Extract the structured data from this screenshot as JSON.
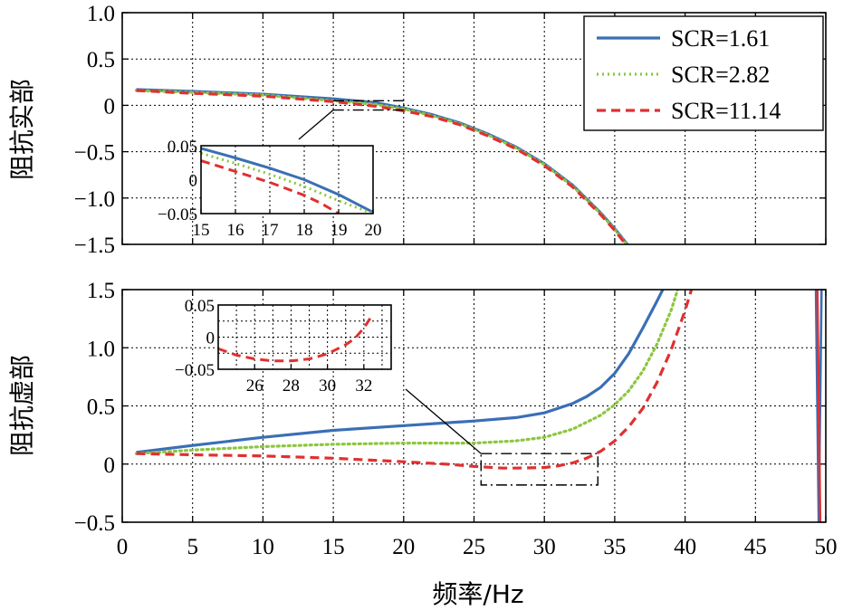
{
  "chart_data": [
    {
      "type": "line",
      "id": "top",
      "ylabel": "阻抗实部",
      "xlim": [
        0,
        50
      ],
      "ylim": [
        -1.5,
        1.0
      ],
      "xticks": [],
      "yticks": [
        {
          "v": 1.0,
          "label": "1.0"
        },
        {
          "v": 0.5,
          "label": "0.5"
        },
        {
          "v": 0,
          "label": "0"
        },
        {
          "v": -0.5,
          "label": "−0.5"
        },
        {
          "v": -1.0,
          "label": "−1.0"
        },
        {
          "v": -1.5,
          "label": "−1.5"
        }
      ],
      "grid": true,
      "legend_position": "top-right",
      "series": [
        {
          "name": "SCR=1.61",
          "color": "#3a6fb5",
          "dash": "solid",
          "x": [
            1,
            5,
            10,
            15,
            18,
            20,
            22,
            24,
            26,
            28,
            30,
            32,
            34,
            35,
            36
          ],
          "y": [
            0.17,
            0.15,
            0.12,
            0.07,
            0.03,
            -0.03,
            -0.1,
            -0.19,
            -0.31,
            -0.45,
            -0.63,
            -0.86,
            -1.16,
            -1.33,
            -1.52
          ]
        },
        {
          "name": "SCR=2.82",
          "color": "#8cc63f",
          "dash": "dotted",
          "x": [
            1,
            5,
            10,
            15,
            18,
            20,
            22,
            24,
            26,
            28,
            30,
            32,
            34,
            35,
            36
          ],
          "y": [
            0.16,
            0.14,
            0.11,
            0.05,
            0.01,
            -0.04,
            -0.11,
            -0.2,
            -0.32,
            -0.46,
            -0.64,
            -0.87,
            -1.17,
            -1.34,
            -1.53
          ]
        },
        {
          "name": "SCR=11.14",
          "color": "#e03030",
          "dash": "dashed",
          "x": [
            1,
            5,
            10,
            15,
            18,
            20,
            22,
            24,
            26,
            28,
            30,
            32,
            34,
            35,
            36
          ],
          "y": [
            0.16,
            0.13,
            0.1,
            0.04,
            -0.01,
            -0.06,
            -0.12,
            -0.21,
            -0.33,
            -0.47,
            -0.65,
            -0.88,
            -1.18,
            -1.35,
            -1.54
          ]
        }
      ],
      "zoom_box": {
        "x": [
          15,
          20
        ],
        "y": [
          -0.05,
          0.05
        ]
      },
      "inset": {
        "xlim": [
          15,
          20
        ],
        "ylim": [
          -0.05,
          0.05
        ],
        "xticks": [
          {
            "v": 15,
            "label": "15"
          },
          {
            "v": 16,
            "label": "16"
          },
          {
            "v": 17,
            "label": "17"
          },
          {
            "v": 18,
            "label": "18"
          },
          {
            "v": 19,
            "label": "19"
          },
          {
            "v": 20,
            "label": "20"
          }
        ],
        "yticks": [
          {
            "v": 0.05,
            "label": "0.05"
          },
          {
            "v": 0,
            "label": "0"
          },
          {
            "v": -0.05,
            "label": "−0.05"
          }
        ],
        "series": [
          {
            "name": "SCR=1.61",
            "x": [
              15,
              16,
              17,
              18,
              19,
              20
            ],
            "y": [
              0.046,
              0.032,
              0.017,
              0.0,
              -0.022,
              -0.048
            ]
          },
          {
            "name": "SCR=2.82",
            "x": [
              15,
              16,
              17,
              18,
              19,
              20
            ],
            "y": [
              0.039,
              0.024,
              0.008,
              -0.01,
              -0.031,
              -0.05
            ]
          },
          {
            "name": "SCR=11.14",
            "x": [
              15,
              16,
              17,
              18,
              18.5,
              19
            ],
            "y": [
              0.028,
              0.012,
              -0.004,
              -0.023,
              -0.035,
              -0.05
            ]
          }
        ]
      }
    },
    {
      "type": "line",
      "id": "bottom",
      "ylabel": "阻抗虚部",
      "xlabel": "频率/Hz",
      "xlim": [
        0,
        50
      ],
      "ylim": [
        -0.5,
        1.5
      ],
      "xticks": [
        {
          "v": 0,
          "label": "0"
        },
        {
          "v": 5,
          "label": "5"
        },
        {
          "v": 10,
          "label": "10"
        },
        {
          "v": 15,
          "label": "15"
        },
        {
          "v": 20,
          "label": "20"
        },
        {
          "v": 25,
          "label": "25"
        },
        {
          "v": 30,
          "label": "30"
        },
        {
          "v": 35,
          "label": "35"
        },
        {
          "v": 40,
          "label": "40"
        },
        {
          "v": 45,
          "label": "45"
        },
        {
          "v": 50,
          "label": "50"
        }
      ],
      "yticks": [
        {
          "v": 1.5,
          "label": "1.5"
        },
        {
          "v": 1.0,
          "label": "1.0"
        },
        {
          "v": 0.5,
          "label": "0.5"
        },
        {
          "v": 0,
          "label": "0"
        },
        {
          "v": -0.5,
          "label": "−0.5"
        }
      ],
      "grid": true,
      "series": [
        {
          "name": "SCR=1.61",
          "color": "#3a6fb5",
          "dash": "solid",
          "x": [
            1,
            5,
            10,
            15,
            20,
            25,
            28,
            30,
            32,
            33,
            34,
            35,
            36,
            37,
            38,
            38.5
          ],
          "y": [
            0.1,
            0.16,
            0.23,
            0.29,
            0.33,
            0.37,
            0.4,
            0.44,
            0.52,
            0.58,
            0.66,
            0.78,
            0.95,
            1.17,
            1.4,
            1.52
          ]
        },
        {
          "name": "SCR=2.82",
          "color": "#8cc63f",
          "dash": "dotted",
          "x": [
            1,
            5,
            10,
            15,
            20,
            25,
            28,
            30,
            32,
            34,
            35,
            36,
            37,
            38,
            39,
            39.5
          ],
          "y": [
            0.09,
            0.12,
            0.15,
            0.17,
            0.18,
            0.18,
            0.2,
            0.23,
            0.3,
            0.42,
            0.51,
            0.63,
            0.8,
            1.03,
            1.32,
            1.51
          ]
        },
        {
          "name": "SCR=11.14",
          "color": "#e03030",
          "dash": "dashed",
          "x": [
            1,
            5,
            10,
            15,
            20,
            23,
            25,
            27,
            28,
            30,
            31,
            32,
            33,
            34,
            35,
            36,
            37,
            38,
            39,
            40,
            40.5
          ],
          "y": [
            0.09,
            0.08,
            0.07,
            0.05,
            0.02,
            0.0,
            -0.02,
            -0.035,
            -0.035,
            -0.03,
            -0.015,
            0.01,
            0.05,
            0.11,
            0.2,
            0.32,
            0.48,
            0.7,
            0.98,
            1.32,
            1.52
          ]
        }
      ],
      "spikes": [
        {
          "x": [
            49.3,
            49.5,
            49.7
          ],
          "y": [
            1.5,
            -0.5,
            1.5
          ],
          "color": "#3a6fb5"
        },
        {
          "x": [
            49.4,
            49.6
          ],
          "y": [
            1.5,
            -0.5
          ],
          "color": "#e03030"
        }
      ],
      "zoom_box": {
        "x": [
          25.5,
          33.8
        ],
        "y": [
          -0.18,
          0.09
        ]
      },
      "inset": {
        "xlim": [
          24,
          33.5
        ],
        "ylim": [
          -0.05,
          0.05
        ],
        "xticks": [
          {
            "v": 26,
            "label": "26"
          },
          {
            "v": 28,
            "label": "28"
          },
          {
            "v": 30,
            "label": "30"
          },
          {
            "v": 32,
            "label": "32"
          }
        ],
        "yticks": [
          {
            "v": 0.05,
            "label": "0.05"
          },
          {
            "v": 0,
            "label": "0"
          },
          {
            "v": -0.05,
            "label": "−0.05"
          }
        ],
        "series": [
          {
            "name": "SCR=11.14",
            "x": [
              24,
              25,
              26,
              27,
              28,
              29,
              30,
              31,
              31.5,
              32,
              32.5
            ],
            "y": [
              -0.018,
              -0.028,
              -0.034,
              -0.037,
              -0.037,
              -0.034,
              -0.026,
              -0.012,
              -0.002,
              0.014,
              0.036
            ]
          }
        ]
      }
    }
  ]
}
